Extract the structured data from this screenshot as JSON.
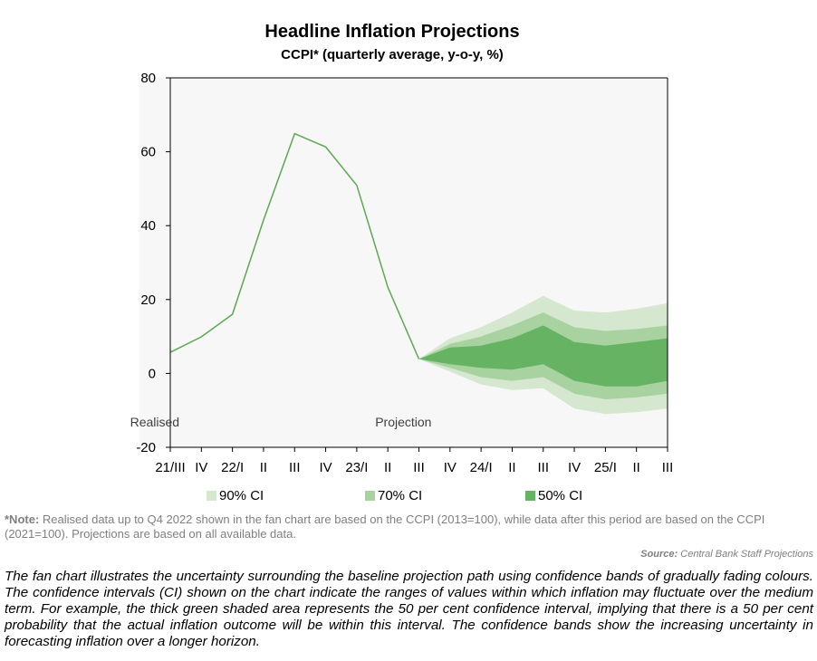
{
  "chart_data": {
    "type": "area",
    "title": "Headline Inflation Projections",
    "subtitle": "CCPI* (quarterly average, y-o-y, %)",
    "ylim": [
      -20,
      80
    ],
    "yticks": [
      -20,
      0,
      20,
      40,
      60,
      80
    ],
    "categories": [
      "21/III",
      "IV",
      "22/I",
      "II",
      "III",
      "IV",
      "23/I",
      "II",
      "III",
      "IV",
      "24/I",
      "II",
      "III",
      "IV",
      "25/I",
      "II",
      "III"
    ],
    "regions": [
      {
        "label": "Realised",
        "from": "21/III",
        "to": "23/III"
      },
      {
        "label": "Projection",
        "from": "23/III",
        "to": "25/III"
      }
    ],
    "realised": {
      "name": "CCPI",
      "x_index": [
        0,
        1,
        2,
        3,
        4,
        5,
        6,
        7,
        8
      ],
      "values": [
        5.7,
        9.9,
        16.0,
        41.5,
        64.9,
        61.3,
        50.9,
        23.3,
        3.9
      ]
    },
    "bands": [
      {
        "name": "90% CI",
        "color": "#d5e7cf",
        "x_index": [
          8,
          9,
          10,
          11,
          12,
          13,
          14,
          15,
          16
        ],
        "upper": [
          3.9,
          9.5,
          12.5,
          16.5,
          21.0,
          17.0,
          16.5,
          17.5,
          19.0
        ],
        "lower": [
          3.9,
          0.5,
          -3.0,
          -4.5,
          -4.0,
          -9.5,
          -11.0,
          -10.5,
          -9.5
        ]
      },
      {
        "name": "70% CI",
        "color": "#a8d3a0",
        "x_index": [
          8,
          9,
          10,
          11,
          12,
          13,
          14,
          15,
          16
        ],
        "upper": [
          3.9,
          8.0,
          10.0,
          13.0,
          16.5,
          12.5,
          11.5,
          12.0,
          13.0
        ],
        "lower": [
          3.9,
          1.5,
          -1.0,
          -2.0,
          -1.0,
          -5.5,
          -7.0,
          -6.5,
          -5.5
        ]
      },
      {
        "name": "50% CI",
        "color": "#66b363",
        "x_index": [
          8,
          9,
          10,
          11,
          12,
          13,
          14,
          15,
          16
        ],
        "upper": [
          3.9,
          7.0,
          7.5,
          9.5,
          13.0,
          8.5,
          7.5,
          8.5,
          9.5
        ],
        "lower": [
          3.9,
          2.5,
          1.5,
          1.0,
          2.5,
          -2.0,
          -3.5,
          -3.5,
          -2.0
        ]
      }
    ],
    "legend": [
      {
        "label": "90% CI",
        "color": "#d5e7cf"
      },
      {
        "label": "70% CI",
        "color": "#a8d3a0"
      },
      {
        "label": "50% CI",
        "color": "#66b363"
      }
    ],
    "colors": {
      "realised_bg": "#d9d9d9",
      "projection_bg": "#f7f7f7",
      "line": "#5aaa4f",
      "axis": "#000000"
    }
  },
  "note": {
    "label": "*Note:",
    "text": " Realised data up to Q4 2022 shown in the fan chart are based on the CCPI (2013=100), while data after this period are based on the CCPI (2021=100). Projections are based on all available data."
  },
  "source": {
    "label": "Source:",
    "text": " Central Bank Staff Projections"
  },
  "description": "The fan chart illustrates the uncertainty surrounding the baseline projection path using confidence bands of gradually fading colours. The confidence intervals (CI) shown on the chart indicate the ranges of values within which inflation may fluctuate over the medium term. For example, the thick green shaded area represents the 50 per cent confidence interval, implying that there is a 50 per cent probability that the actual inflation outcome will be within this interval. The confidence bands show the increasing uncertainty in forecasting inflation over a longer horizon."
}
